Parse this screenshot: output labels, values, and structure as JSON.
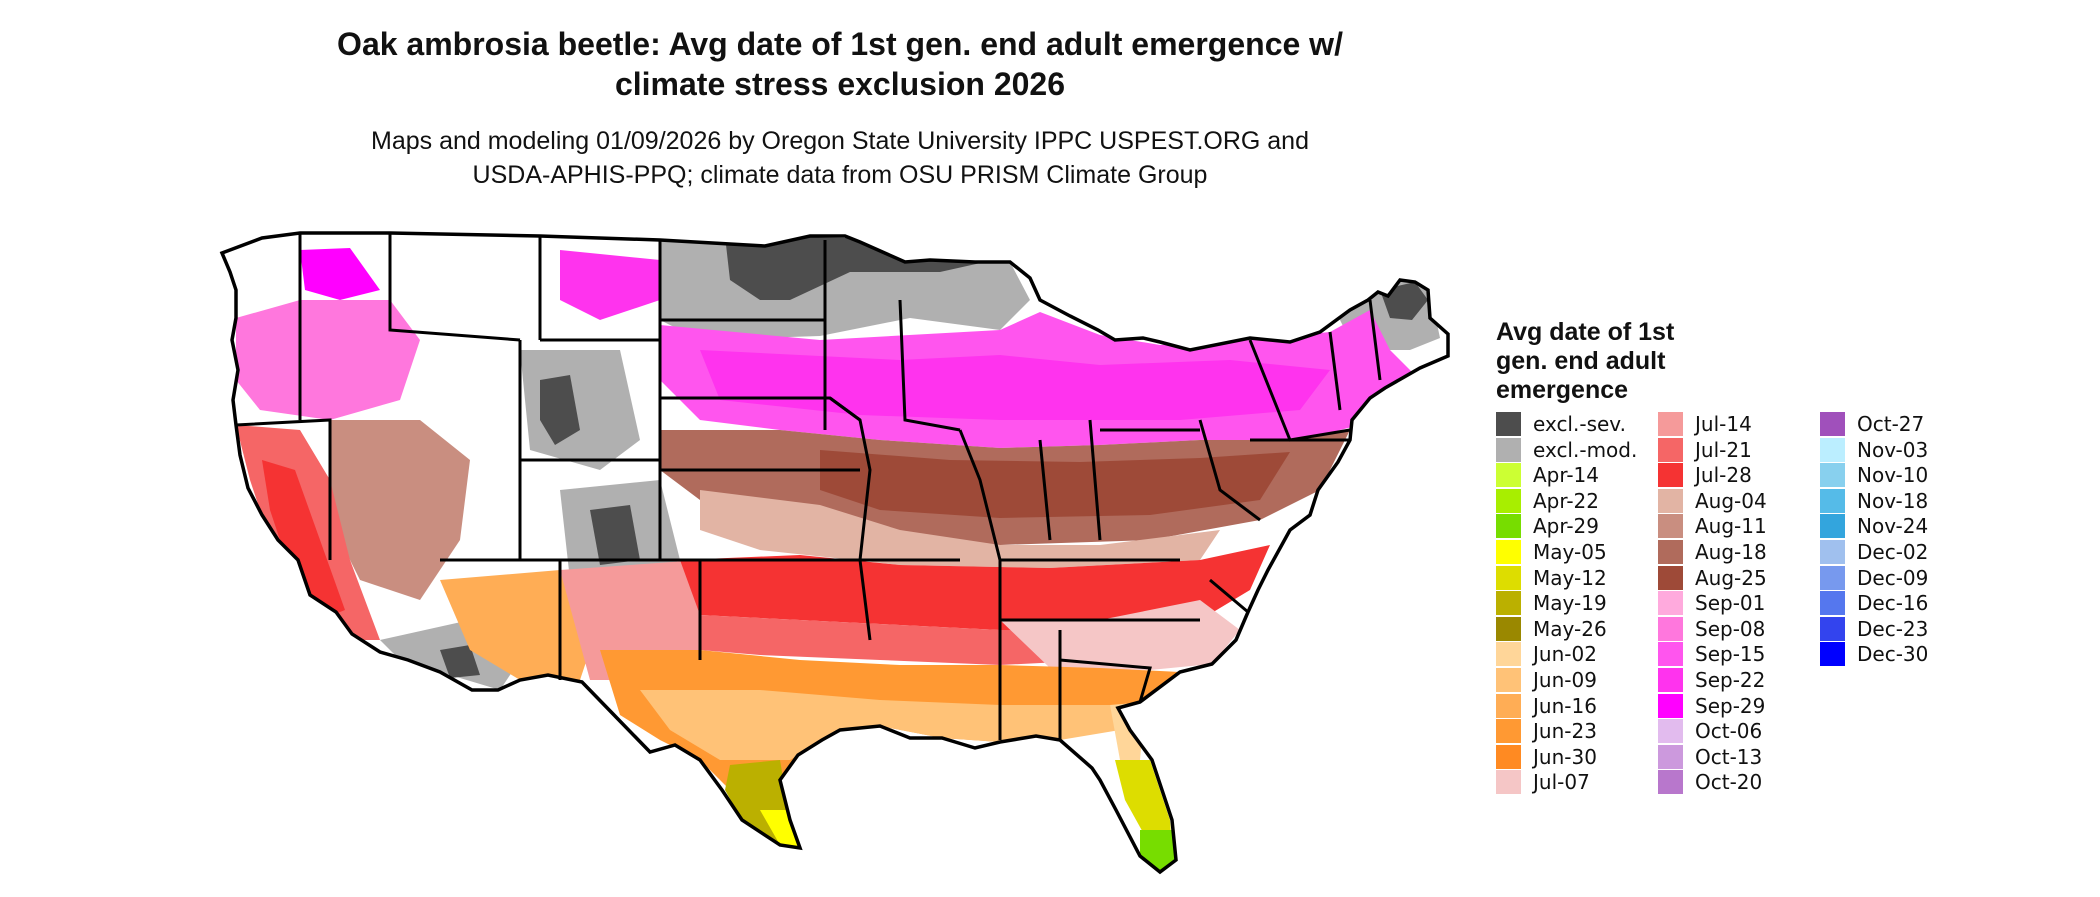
{
  "title_line1": "Oak ambrosia beetle: Avg date of 1st gen. end adult emergence w/",
  "title_line2": "climate stress exclusion 2026",
  "subtitle_line1": "Maps and modeling 01/09/2026 by Oregon State University IPPC USPEST.ORG and",
  "subtitle_line2": "USDA-APHIS-PPQ; climate data from OSU PRISM Climate Group",
  "legend": {
    "title_line1": "Avg date of 1st",
    "title_line2": "gen. end adult",
    "title_line3": "emergence",
    "items": [
      {
        "label": "excl.-sev.",
        "color": "#4d4d4d"
      },
      {
        "label": "excl.-mod.",
        "color": "#b0b0b0"
      },
      {
        "label": "Apr-14",
        "color": "#ccff33"
      },
      {
        "label": "Apr-22",
        "color": "#a8ee00"
      },
      {
        "label": "Apr-29",
        "color": "#77dd00"
      },
      {
        "label": "May-05",
        "color": "#ffff00"
      },
      {
        "label": "May-12",
        "color": "#dddd00"
      },
      {
        "label": "May-19",
        "color": "#bbb000"
      },
      {
        "label": "May-26",
        "color": "#9a8800"
      },
      {
        "label": "Jun-02",
        "color": "#ffd699"
      },
      {
        "label": "Jun-09",
        "color": "#ffc277"
      },
      {
        "label": "Jun-16",
        "color": "#ffad55"
      },
      {
        "label": "Jun-23",
        "color": "#ff9933"
      },
      {
        "label": "Jun-30",
        "color": "#ff8a22"
      },
      {
        "label": "Jul-07",
        "color": "#f5c6c6"
      },
      {
        "label": "Jul-14",
        "color": "#f59a9a"
      },
      {
        "label": "Jul-21",
        "color": "#f56666"
      },
      {
        "label": "Jul-28",
        "color": "#f53333"
      },
      {
        "label": "Aug-04",
        "color": "#e2b4a4"
      },
      {
        "label": "Aug-11",
        "color": "#c98e80"
      },
      {
        "label": "Aug-18",
        "color": "#b06b5c"
      },
      {
        "label": "Aug-25",
        "color": "#9e4a38"
      },
      {
        "label": "Sep-01",
        "color": "#ffaadd"
      },
      {
        "label": "Sep-08",
        "color": "#ff77dd"
      },
      {
        "label": "Sep-15",
        "color": "#ff55ee"
      },
      {
        "label": "Sep-22",
        "color": "#ff33ee"
      },
      {
        "label": "Sep-29",
        "color": "#ff00ff"
      },
      {
        "label": "Oct-06",
        "color": "#e2bbee"
      },
      {
        "label": "Oct-13",
        "color": "#cc99dd"
      },
      {
        "label": "Oct-20",
        "color": "#b877cc"
      },
      {
        "label": "Oct-27",
        "color": "#a050bb"
      },
      {
        "label": "Nov-03",
        "color": "#bbeeff"
      },
      {
        "label": "Nov-10",
        "color": "#88d0ee"
      },
      {
        "label": "Nov-18",
        "color": "#55bbe8"
      },
      {
        "label": "Nov-24",
        "color": "#33a5dd"
      },
      {
        "label": "Dec-02",
        "color": "#a0c0ee"
      },
      {
        "label": "Dec-09",
        "color": "#7799ee"
      },
      {
        "label": "Dec-16",
        "color": "#5577ee"
      },
      {
        "label": "Dec-23",
        "color": "#3344ee"
      },
      {
        "label": "Dec-30",
        "color": "#0000ff"
      }
    ]
  }
}
